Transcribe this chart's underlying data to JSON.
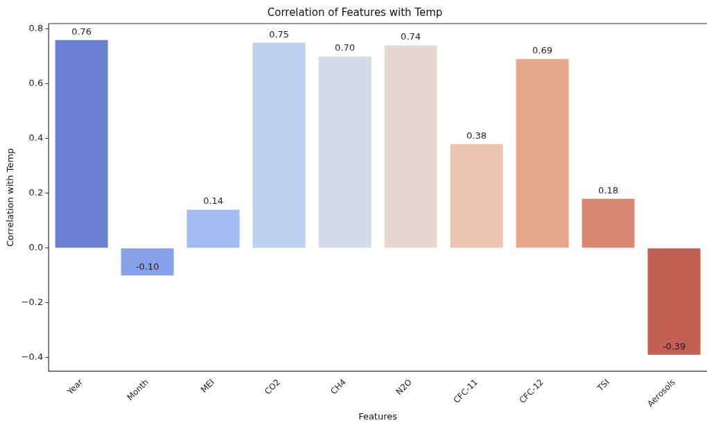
{
  "chart_data": {
    "type": "bar",
    "title": "Correlation of Features with Temp",
    "xlabel": "Features",
    "ylabel": "Correlation with Temp",
    "categories": [
      "Year",
      "Month",
      "MEI",
      "CO2",
      "CH4",
      "N2O",
      "CFC-11",
      "CFC-12",
      "TSI",
      "Aerosols"
    ],
    "values": [
      0.76,
      -0.1,
      0.14,
      0.75,
      0.7,
      0.74,
      0.38,
      0.69,
      0.18,
      -0.39
    ],
    "value_labels": [
      "0.76",
      "-0.10",
      "0.14",
      "0.75",
      "0.70",
      "0.74",
      "0.38",
      "0.69",
      "0.18",
      "-0.39"
    ],
    "colors": [
      "#6a7fd2",
      "#87a0e8",
      "#a3baf2",
      "#bed0f0",
      "#d4dbe7",
      "#e5d8d1",
      "#ebc5b1",
      "#e6a78d",
      "#d98873",
      "#c35f53"
    ],
    "ylim": [
      -0.45,
      0.82
    ],
    "yticks": [
      {
        "value": -0.4,
        "label": "−0.4"
      },
      {
        "value": -0.2,
        "label": "−0.2"
      },
      {
        "value": 0,
        "label": "0.0"
      },
      0.2,
      0.4,
      0.6,
      0.8
    ],
    "grid": false,
    "legend": false
  }
}
